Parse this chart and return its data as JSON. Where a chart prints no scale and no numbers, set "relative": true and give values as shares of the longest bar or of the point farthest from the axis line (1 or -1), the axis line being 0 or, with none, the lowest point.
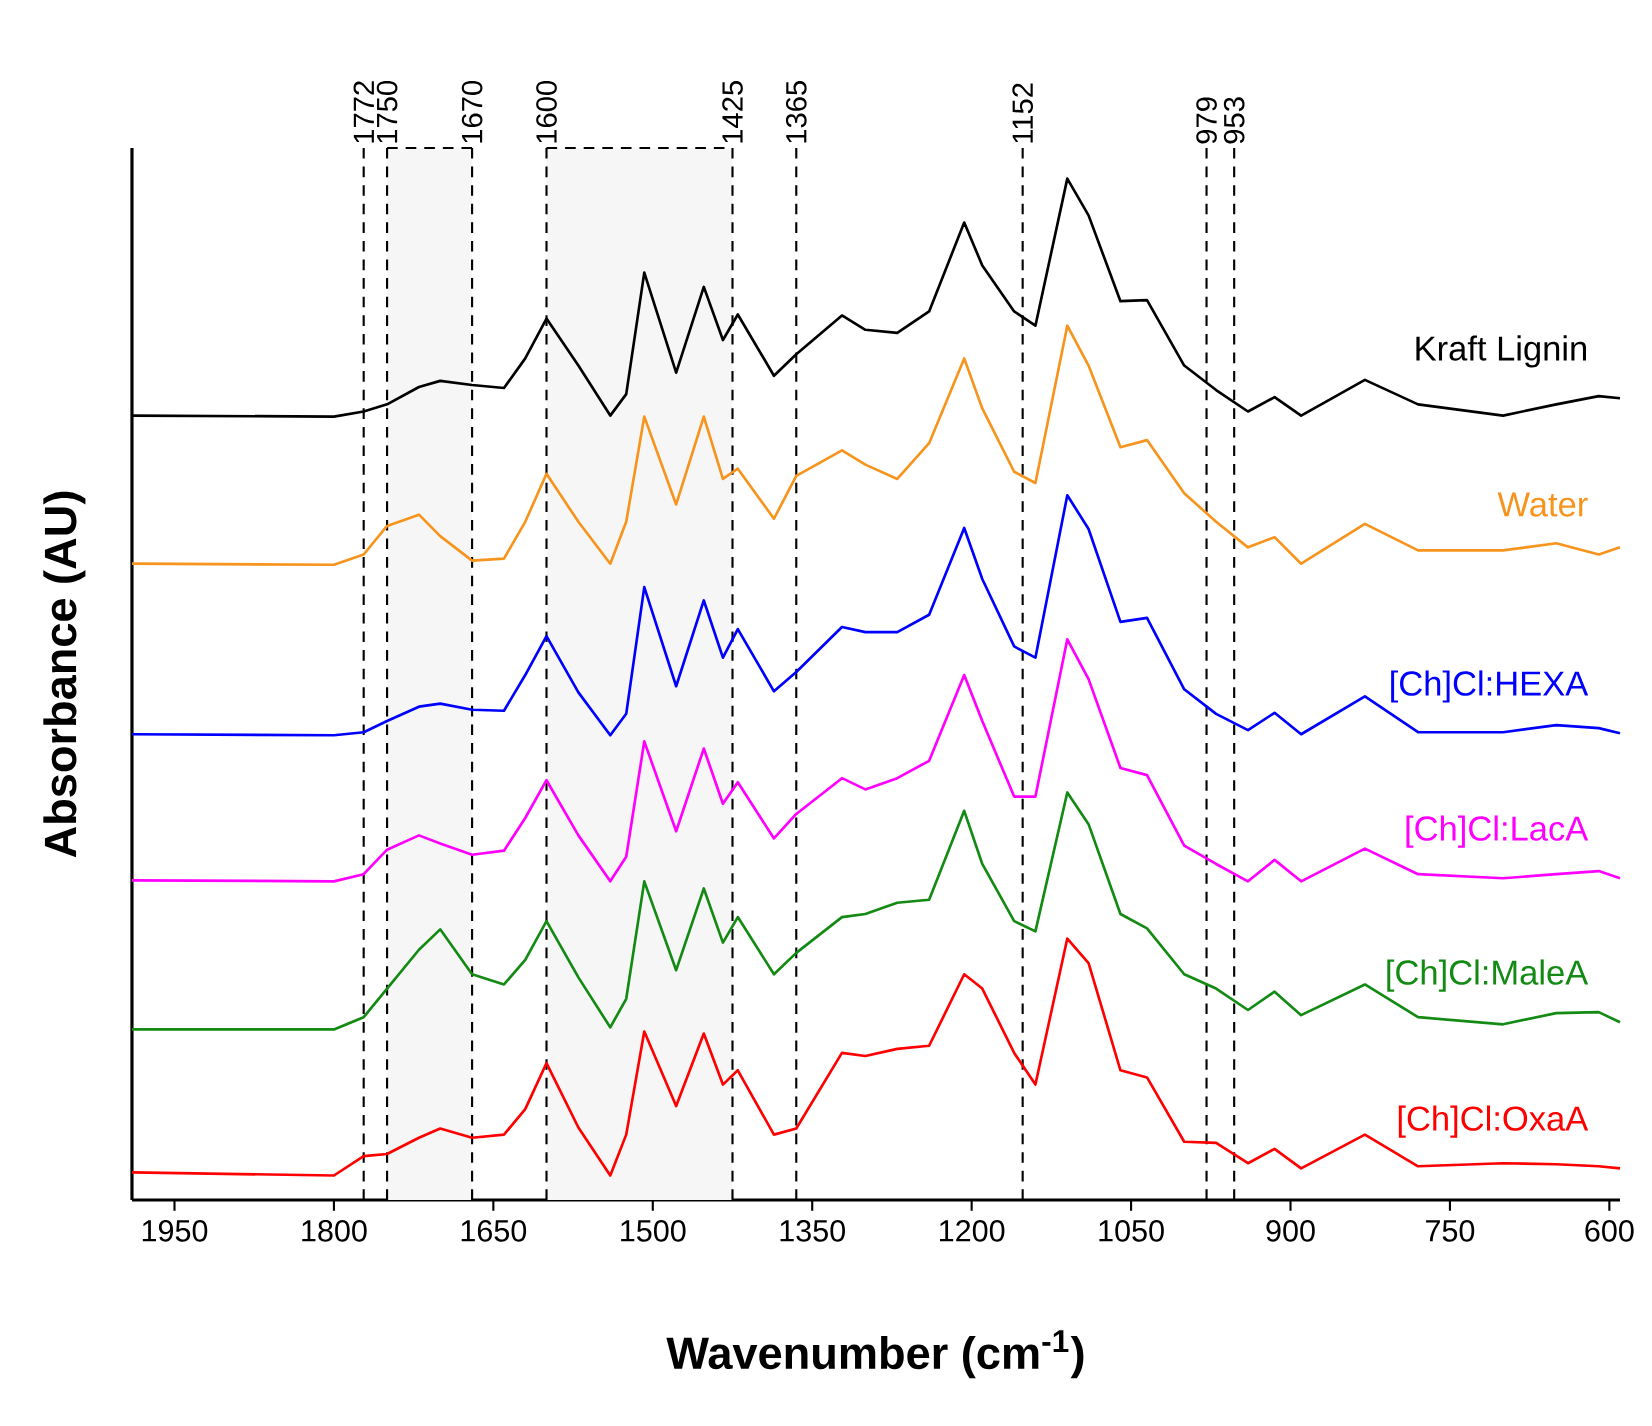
{
  "chart_data": {
    "type": "line",
    "relative": true,
    "xlabel": "Wavenumber (cm$^{-1}$)",
    "ylabel": "Absorbance (AU)",
    "xlim": [
      1990,
      590
    ],
    "xticks": [
      1950,
      1800,
      1650,
      1500,
      1350,
      1200,
      1050,
      900,
      750,
      600
    ],
    "x": [
      1990,
      1800,
      1772,
      1750,
      1720,
      1700,
      1670,
      1640,
      1620,
      1600,
      1570,
      1540,
      1525,
      1508,
      1478,
      1452,
      1434,
      1420,
      1386,
      1365,
      1322,
      1300,
      1270,
      1240,
      1207,
      1190,
      1160,
      1140,
      1110,
      1090,
      1060,
      1035,
      1000,
      970,
      940,
      915,
      890,
      830,
      780,
      700,
      650,
      610,
      590
    ],
    "series": [
      {
        "name": "Kraft Lignin",
        "color": "#000000",
        "values": [
          0.768,
          0.767,
          0.772,
          0.779,
          0.796,
          0.802,
          0.798,
          0.795,
          0.824,
          0.863,
          0.817,
          0.768,
          0.789,
          0.908,
          0.81,
          0.894,
          0.842,
          0.867,
          0.807,
          0.828,
          0.866,
          0.852,
          0.849,
          0.87,
          0.957,
          0.915,
          0.87,
          0.856,
          1.0,
          0.964,
          0.88,
          0.881,
          0.817,
          0.793,
          0.772,
          0.786,
          0.768,
          0.803,
          0.779,
          0.768,
          0.779,
          0.787,
          0.785
        ]
      },
      {
        "name": "Water",
        "color": "#f7941d",
        "values": [
          0.623,
          0.622,
          0.632,
          0.66,
          0.671,
          0.65,
          0.626,
          0.628,
          0.664,
          0.711,
          0.664,
          0.623,
          0.664,
          0.767,
          0.681,
          0.767,
          0.706,
          0.716,
          0.667,
          0.709,
          0.734,
          0.72,
          0.706,
          0.741,
          0.824,
          0.775,
          0.713,
          0.702,
          0.856,
          0.817,
          0.737,
          0.744,
          0.692,
          0.664,
          0.639,
          0.649,
          0.623,
          0.662,
          0.636,
          0.636,
          0.643,
          0.632,
          0.639
        ]
      },
      {
        "name": "[Ch]Cl:HEXA",
        "color": "#0000ff",
        "values": [
          0.456,
          0.455,
          0.458,
          0.469,
          0.483,
          0.486,
          0.48,
          0.479,
          0.514,
          0.552,
          0.497,
          0.455,
          0.476,
          0.6,
          0.503,
          0.587,
          0.531,
          0.559,
          0.498,
          0.517,
          0.561,
          0.556,
          0.556,
          0.573,
          0.658,
          0.608,
          0.542,
          0.531,
          0.69,
          0.657,
          0.566,
          0.57,
          0.5,
          0.476,
          0.46,
          0.477,
          0.456,
          0.493,
          0.458,
          0.458,
          0.465,
          0.462,
          0.457
        ]
      },
      {
        "name": "[Ch]Cl:LacA",
        "color": "#ff00ff",
        "values": [
          0.313,
          0.312,
          0.319,
          0.343,
          0.357,
          0.349,
          0.338,
          0.342,
          0.374,
          0.411,
          0.357,
          0.312,
          0.336,
          0.449,
          0.361,
          0.442,
          0.388,
          0.409,
          0.354,
          0.378,
          0.413,
          0.402,
          0.413,
          0.43,
          0.514,
          0.469,
          0.395,
          0.395,
          0.549,
          0.51,
          0.423,
          0.416,
          0.347,
          0.329,
          0.312,
          0.333,
          0.312,
          0.344,
          0.319,
          0.315,
          0.319,
          0.322,
          0.315
        ]
      },
      {
        "name": "[Ch]Cl:MaleA",
        "color": "#138a13",
        "values": [
          0.167,
          0.167,
          0.179,
          0.207,
          0.245,
          0.265,
          0.221,
          0.211,
          0.235,
          0.273,
          0.218,
          0.169,
          0.197,
          0.312,
          0.225,
          0.305,
          0.252,
          0.277,
          0.221,
          0.242,
          0.277,
          0.28,
          0.291,
          0.294,
          0.381,
          0.329,
          0.273,
          0.263,
          0.399,
          0.368,
          0.28,
          0.266,
          0.221,
          0.207,
          0.186,
          0.204,
          0.181,
          0.211,
          0.179,
          0.172,
          0.183,
          0.184,
          0.174
        ]
      },
      {
        "name": "[Ch]Cl:OxaA",
        "color": "#ff0000",
        "values": [
          0.027,
          0.024,
          0.043,
          0.045,
          0.061,
          0.07,
          0.061,
          0.064,
          0.089,
          0.134,
          0.071,
          0.024,
          0.064,
          0.165,
          0.092,
          0.163,
          0.113,
          0.127,
          0.064,
          0.07,
          0.144,
          0.141,
          0.148,
          0.151,
          0.221,
          0.207,
          0.144,
          0.113,
          0.256,
          0.232,
          0.127,
          0.12,
          0.057,
          0.056,
          0.036,
          0.05,
          0.031,
          0.064,
          0.033,
          0.036,
          0.035,
          0.033,
          0.031
        ]
      }
    ],
    "ref_lines": [
      {
        "axis": "x",
        "value": 1772,
        "label": "1772",
        "line_style": "dashed"
      },
      {
        "axis": "x",
        "value": 1750,
        "label": "1750",
        "line_style": "dashed"
      },
      {
        "axis": "x",
        "value": 1670,
        "label": "1670",
        "line_style": "dashed"
      },
      {
        "axis": "x",
        "value": 1600,
        "label": "1600",
        "line_style": "dashed"
      },
      {
        "axis": "x",
        "value": 1425,
        "label": "1425",
        "line_style": "dashed"
      },
      {
        "axis": "x",
        "value": 1365,
        "label": "1365",
        "line_style": "dashed"
      },
      {
        "axis": "x",
        "value": 1152,
        "label": "1152",
        "line_style": "dashed"
      },
      {
        "axis": "x",
        "value": 979,
        "label": "979",
        "line_style": "dashed"
      },
      {
        "axis": "x",
        "value": 953,
        "label": "953",
        "line_style": "dashed"
      }
    ],
    "bands": [
      {
        "axis": "x",
        "from": 1750,
        "to": 1670,
        "color": "#f6f6f6"
      },
      {
        "axis": "x",
        "from": 1600,
        "to": 1425,
        "color": "#f6f6f6"
      }
    ]
  }
}
